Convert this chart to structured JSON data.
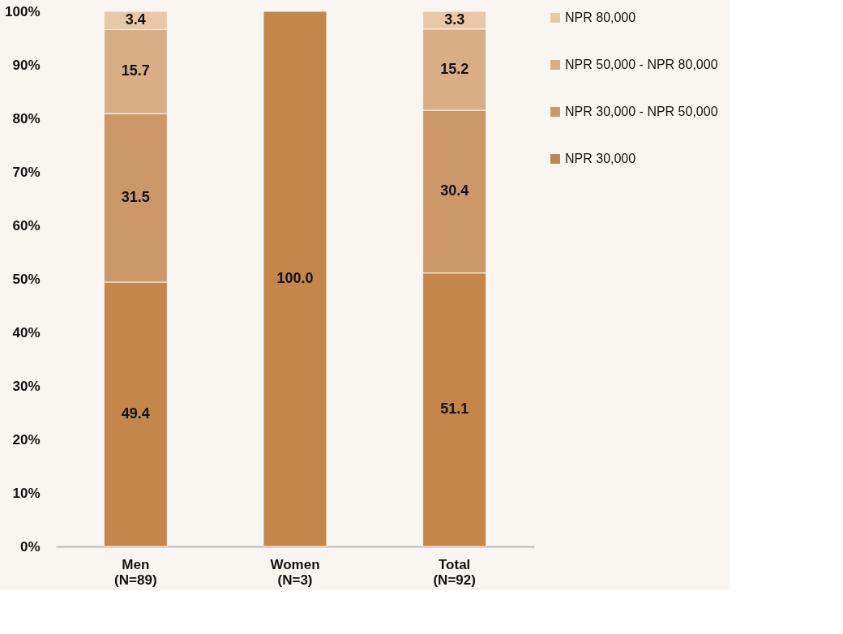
{
  "chart_data": {
    "type": "bar",
    "stacked": true,
    "categories": [
      "Men\n(N=89)",
      "Women\n(N=3)",
      "Total\n(N=92)"
    ],
    "series": [
      {
        "name": "NPR 30,000",
        "color": "#c4864a",
        "values": [
          49.4,
          100.0,
          51.1
        ],
        "value_labels": [
          "49.4",
          "100.0",
          "51.1"
        ]
      },
      {
        "name": "NPR 30,000  -  NPR 50,000",
        "color": "#cd9868",
        "values": [
          31.5,
          null,
          30.4
        ],
        "value_labels": [
          "31.5",
          null,
          "30.4"
        ]
      },
      {
        "name": "NPR 50,000 -   NPR 80,000",
        "color": "#d9ae86",
        "values": [
          15.7,
          null,
          15.2
        ],
        "value_labels": [
          "15.7",
          null,
          "15.2"
        ]
      },
      {
        "name": "NPR 80,000",
        "color": "#e8c8a6",
        "values": [
          3.4,
          null,
          3.3
        ],
        "value_labels": [
          "3.4",
          null,
          "3.3"
        ]
      }
    ],
    "ylim": [
      0,
      100
    ],
    "yticks": [
      {
        "value": 0,
        "label": "0%"
      },
      {
        "value": 10,
        "label": "10%"
      },
      {
        "value": 20,
        "label": "20%"
      },
      {
        "value": 30,
        "label": "30%"
      },
      {
        "value": 40,
        "label": "40%"
      },
      {
        "value": 50,
        "label": "50%"
      },
      {
        "value": 60,
        "label": "60%"
      },
      {
        "value": 70,
        "label": "70%"
      },
      {
        "value": 80,
        "label": "80%"
      },
      {
        "value": 90,
        "label": "90%"
      },
      {
        "value": 100,
        "label": "100%"
      }
    ],
    "grid": false,
    "legend": "right"
  }
}
